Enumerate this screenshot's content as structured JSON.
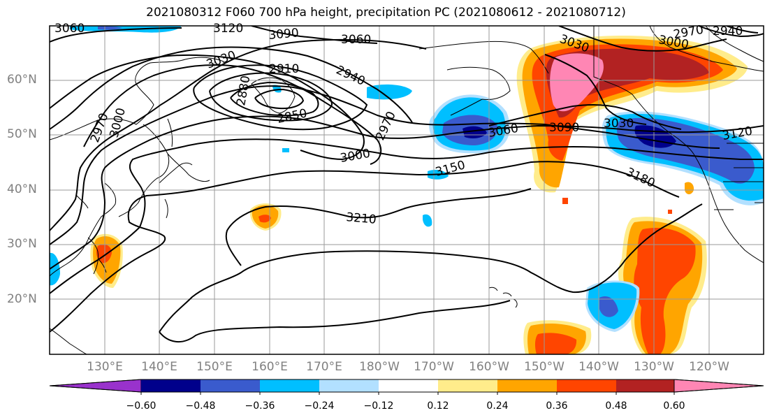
{
  "title": "2021080312 F060 700 hPa height, precipitation PC (2021080612 - 2021080712)",
  "lat_labels": [
    "60°N",
    "50°N",
    "40°N",
    "30°N",
    "20°N"
  ],
  "lon_labels": [
    "130°E",
    "140°E",
    "150°E",
    "160°E",
    "170°E",
    "180°W",
    "170°W",
    "160°W",
    "150°W",
    "140°W",
    "130°W",
    "120°W"
  ],
  "contour_labels": [
    "3060",
    "3120",
    "3090",
    "3060",
    "3030",
    "2910",
    "2940",
    "2880",
    "2850",
    "2970",
    "3000",
    "2970",
    "3000",
    "3060",
    "3090",
    "3030",
    "3030",
    "2970",
    "3000",
    "2940",
    "3120",
    "3150",
    "3180",
    "3210"
  ],
  "colorbar": {
    "ticks": [
      "−0.60",
      "−0.48",
      "−0.36",
      "−0.24",
      "−0.12",
      "0.12",
      "0.24",
      "0.36",
      "0.48",
      "0.60"
    ],
    "colors": [
      "#9932cc",
      "#00008b",
      "#3a5bcd",
      "#00bfff",
      "#b2e0ff",
      "#ffffff",
      "#ffec8b",
      "#ffa500",
      "#ff4500",
      "#b22222",
      "#ff86b4"
    ]
  }
}
